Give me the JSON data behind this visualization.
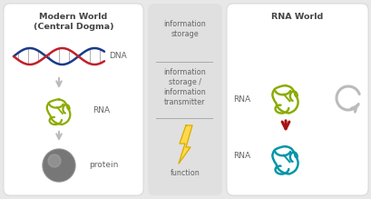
{
  "bg_color": "#e8e8e8",
  "panel1_bg": "#ffffff",
  "panel2_bg": "#e0e0e0",
  "panel3_bg": "#ffffff",
  "panel1_title": "Modern World\n(Central Dogma)",
  "panel3_title": "RNA World",
  "panel2_label1": "information\nstorage",
  "panel2_label2": "information\nstorage /\ninformation\ntransmitter",
  "panel2_label3": "function",
  "label_dna": "DNA",
  "label_rna1": "RNA",
  "label_protein": "protein",
  "label_rna2": "RNA",
  "label_rna3": "RNA",
  "olive_color": "#8aac00",
  "teal_color": "#0095a8",
  "red_arrow_color": "#aa1111",
  "gray_arrow_color": "#bbbbbb",
  "text_color": "#666666",
  "title_color": "#444444",
  "dna_red": "#c0202a",
  "dna_blue": "#1a3a8a",
  "protein_dark": "#777777",
  "protein_light": "#aaaaaa",
  "separator_color": "#aaaaaa",
  "lightning_yellow": "#ffd84d",
  "lightning_outline": "#d4a800",
  "panel_border_color": "#cccccc",
  "fig_w": 4.1,
  "fig_h": 2.19,
  "dpi": 100
}
